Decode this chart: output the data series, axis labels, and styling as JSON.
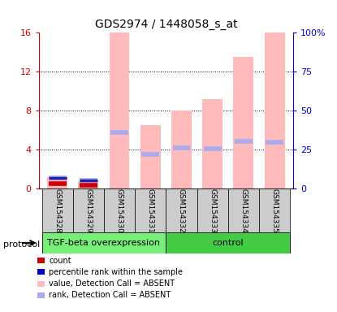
{
  "title": "GDS2974 / 1448058_s_at",
  "samples": [
    "GSM154328",
    "GSM154329",
    "GSM154330",
    "GSM154331",
    "GSM154332",
    "GSM154333",
    "GSM154334",
    "GSM154335"
  ],
  "pink_values": [
    1.2,
    0.8,
    16.0,
    6.5,
    8.0,
    9.2,
    13.5,
    16.0
  ],
  "blue_ranks": [
    1.1,
    0.9,
    5.8,
    3.5,
    4.2,
    4.1,
    4.9,
    4.8
  ],
  "red_counts": [
    0.5,
    0.35,
    0.0,
    0.0,
    0.0,
    0.0,
    0.0,
    0.0
  ],
  "blue_count_ranks": [
    1.1,
    0.9,
    0.0,
    0.0,
    0.0,
    0.0,
    0.0,
    0.0
  ],
  "groups": [
    {
      "label": "TGF-beta overexpression",
      "start": 0,
      "end": 4,
      "color": "#77ee77"
    },
    {
      "label": "control",
      "start": 4,
      "end": 8,
      "color": "#44cc44"
    }
  ],
  "protocol_label": "protocol",
  "ylim_left": [
    0,
    16
  ],
  "ylim_right": [
    0,
    100
  ],
  "yticks_left": [
    0,
    4,
    8,
    12,
    16
  ],
  "yticks_right": [
    0,
    25,
    50,
    75,
    100
  ],
  "ytick_labels_left": [
    "0",
    "4",
    "8",
    "12",
    "16"
  ],
  "ytick_labels_right": [
    "0",
    "25",
    "50",
    "75",
    "100%"
  ],
  "left_axis_color": "#cc0000",
  "right_axis_color": "#0000cc",
  "pink_bar_color": "#ffbbbb",
  "blue_mark_color": "#aaaaee",
  "red_mark_color": "#cc0000",
  "dark_blue_mark_color": "#2222aa",
  "bg_color": "#ffffff",
  "sample_bg_color": "#cccccc",
  "legend_items": [
    {
      "color": "#cc0000",
      "label": "count"
    },
    {
      "color": "#0000cc",
      "label": "percentile rank within the sample"
    },
    {
      "color": "#ffbbbb",
      "label": "value, Detection Call = ABSENT"
    },
    {
      "color": "#aaaaee",
      "label": "rank, Detection Call = ABSENT"
    }
  ]
}
